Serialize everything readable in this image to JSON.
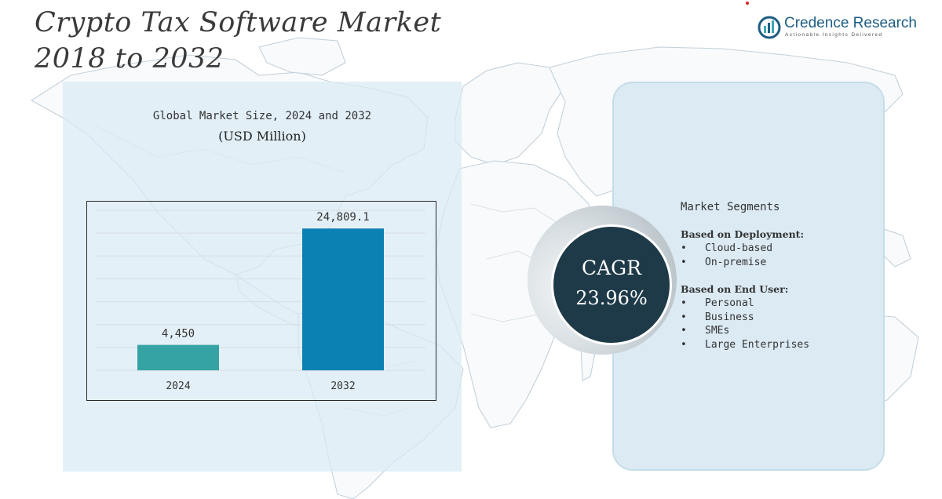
{
  "header": {
    "title_line1": "Crypto Tax Software Market",
    "title_line2": "2018 to 2032"
  },
  "logo": {
    "name": "Credence Research",
    "tagline": "Actionable Insights Delivered",
    "brand_color": "#1d5e84"
  },
  "chart_panel": {
    "title": "Global Market Size, 2024 and 2032",
    "unit": "(USD Million)"
  },
  "chart_data": {
    "type": "bar",
    "title": "Global Market Size, 2024 and 2032",
    "ylabel": "(USD Million)",
    "categories": [
      "2024",
      "2032"
    ],
    "values": [
      4450,
      24809.1
    ],
    "data_labels": [
      "4,450",
      "24,809.1"
    ],
    "colors": [
      "#35a3a3",
      "#0a80b3"
    ],
    "ylim": [
      0,
      28000
    ],
    "grid": true
  },
  "cagr": {
    "label": "CAGR",
    "value": "23.96%",
    "color": "#1e3a48"
  },
  "segments": {
    "title": "Market Segments",
    "groups": [
      {
        "heading": "Based on Deployment:",
        "items": [
          "Cloud-based",
          "On-premise"
        ]
      },
      {
        "heading": "Based on End User:",
        "items": [
          "Personal",
          "Business",
          "SMEs",
          "Large Enterprises"
        ]
      }
    ]
  }
}
